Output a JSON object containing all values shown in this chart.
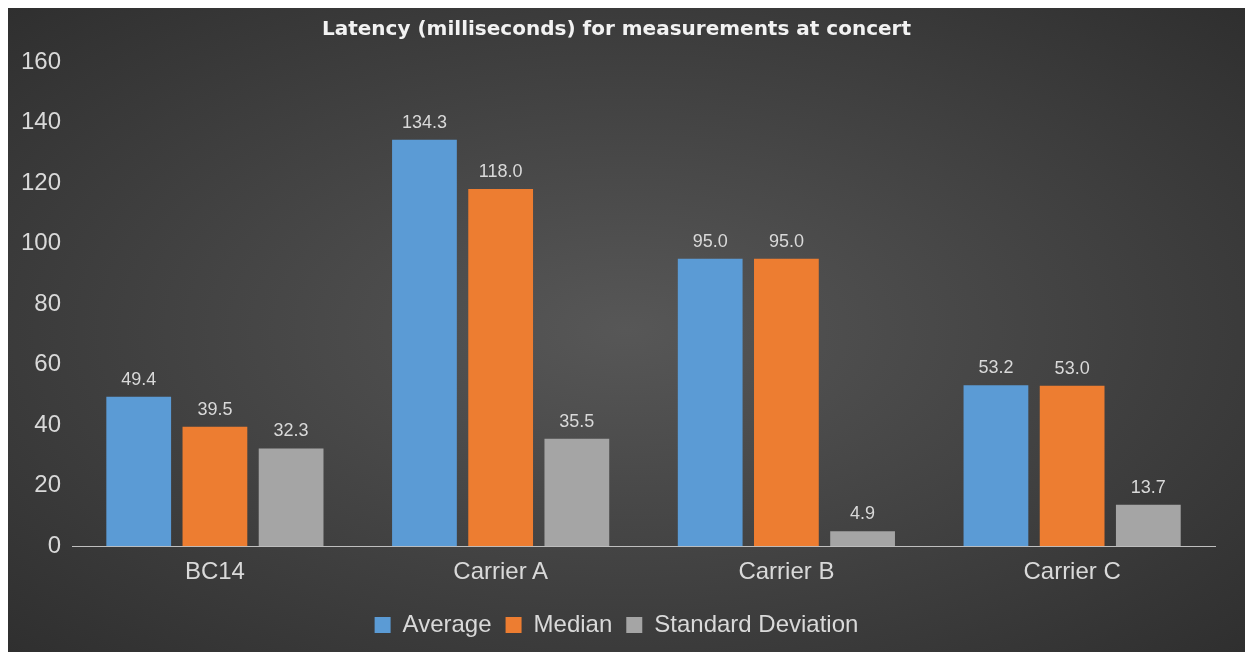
{
  "chart_data": {
    "type": "bar",
    "title": "Latency (milliseconds) for measurements at concert",
    "categories": [
      "BC14",
      "Carrier A",
      "Carrier B",
      "Carrier C"
    ],
    "series": [
      {
        "name": "Average",
        "color": "#5b9bd5",
        "values": [
          49.4,
          134.3,
          95.0,
          53.2
        ],
        "value_labels": [
          "49.4",
          "134.3",
          "95.0",
          "53.2"
        ]
      },
      {
        "name": "Median",
        "color": "#ed7d31",
        "values": [
          39.5,
          118.0,
          95.0,
          53.0
        ],
        "value_labels": [
          "39.5",
          "118.0",
          "95.0",
          "53.0"
        ]
      },
      {
        "name": "Standard Deviation",
        "color": "#a5a5a5",
        "values": [
          32.3,
          35.5,
          4.9,
          13.7
        ],
        "value_labels": [
          "32.3",
          "35.5",
          "4.9",
          "13.7"
        ]
      }
    ],
    "ylim": [
      0,
      160
    ],
    "yticks": [
      0,
      20,
      40,
      60,
      80,
      100,
      120,
      140,
      160
    ],
    "grid": false,
    "legend": "bottom"
  }
}
